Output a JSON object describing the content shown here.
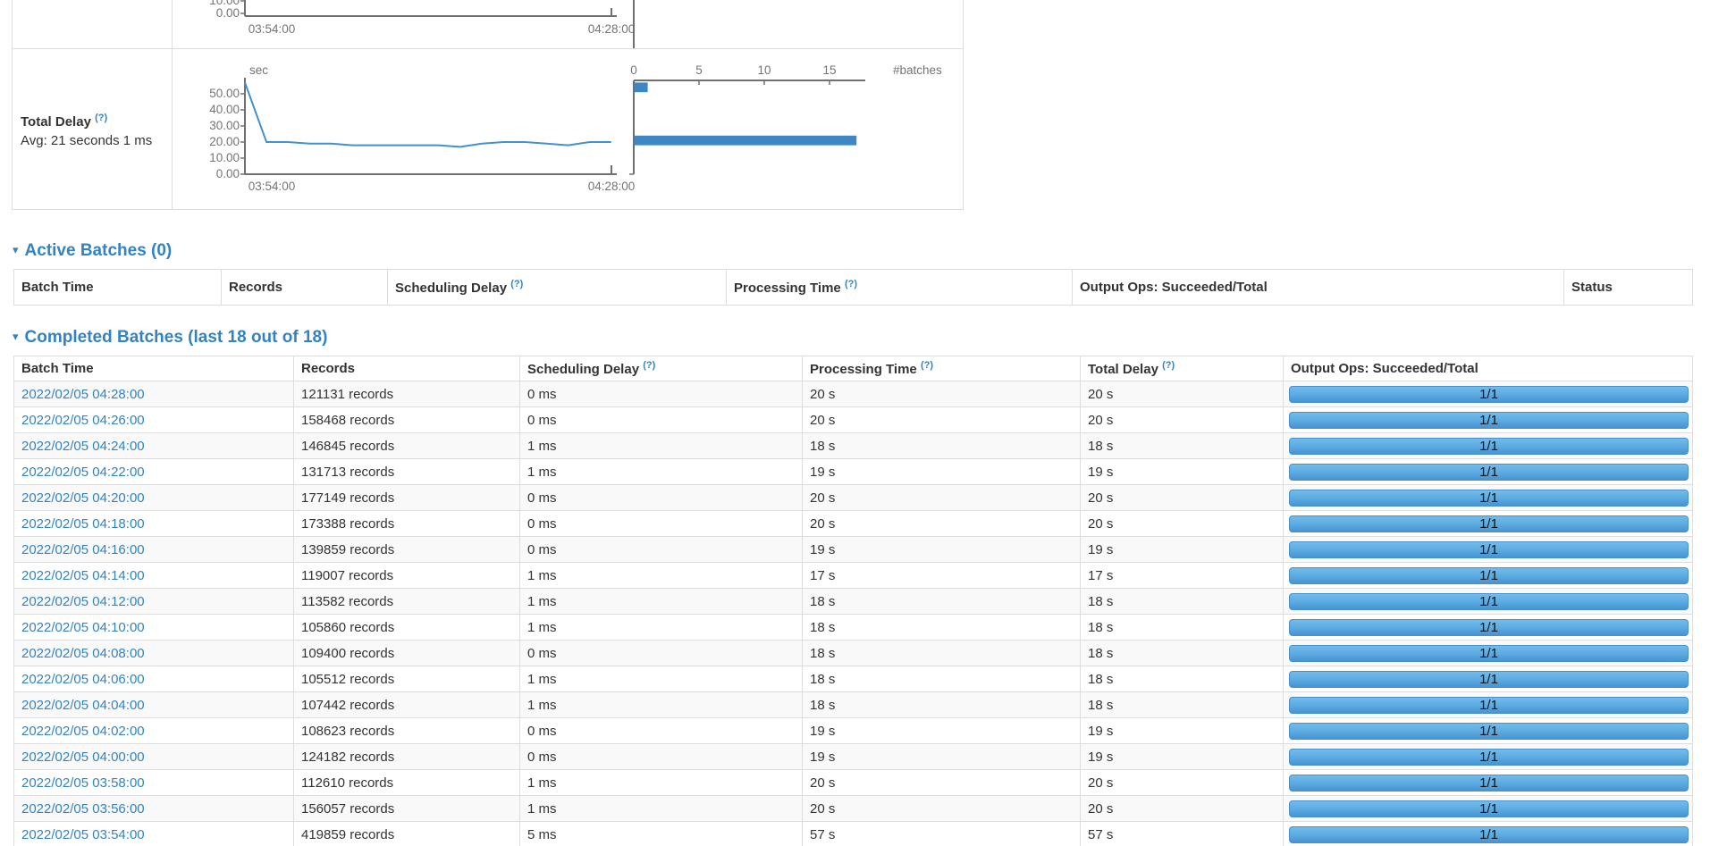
{
  "colors": {
    "accent_blue": "#3383c4",
    "chart_blue": "#3e86c4",
    "line_blue": "#4490d0",
    "axis_gray": "#707070",
    "label_gray": "#747474",
    "border_gray": "#dddddd",
    "stripe_gray": "#f9f9f9",
    "bar_gradient_top": "#72bcec",
    "bar_gradient_bottom": "#4892d3"
  },
  "stat_row": {
    "label": "Total Delay",
    "help_mark": "(?)",
    "avg": "Avg: 21 seconds 1 ms"
  },
  "chart_data": [
    {
      "name": "previous-metric-chart-cutoff",
      "type": "line",
      "note": "bottom edge of previous metric chart, cut off by viewport top",
      "visible_ytick_labels": [
        "10.00",
        "0.00"
      ],
      "x_labels": [
        "03:54:00",
        "04:28:00"
      ]
    },
    {
      "name": "total-delay-timeline",
      "type": "line",
      "unit_label": "sec",
      "x_labels": [
        "03:54:00",
        "04:28:00"
      ],
      "x_times": [
        "03:54",
        "03:56",
        "03:58",
        "04:00",
        "04:02",
        "04:04",
        "04:06",
        "04:08",
        "04:10",
        "04:12",
        "04:14",
        "04:16",
        "04:18",
        "04:20",
        "04:22",
        "04:24",
        "04:26",
        "04:28"
      ],
      "values_sec": [
        57,
        20,
        20,
        19,
        19,
        18,
        18,
        18,
        18,
        18,
        17,
        19,
        20,
        20,
        19,
        18,
        20,
        20
      ],
      "yticks": [
        0,
        10,
        20,
        30,
        40,
        50
      ],
      "ylim": [
        0,
        57
      ],
      "grid": false
    },
    {
      "name": "total-delay-histogram",
      "type": "bar",
      "orientation": "horizontal",
      "xlabel": "#batches",
      "xticks": [
        0,
        5,
        10,
        15
      ],
      "bins": [
        {
          "approx_sec_range": [
            51,
            57
          ],
          "count": 1
        },
        {
          "approx_sec_range": [
            18,
            24
          ],
          "count": 17
        }
      ]
    }
  ],
  "active_batches": {
    "arrow": "▾",
    "heading": "Active Batches (0)",
    "columns": [
      {
        "label": "Batch Time",
        "help": false
      },
      {
        "label": "Records",
        "help": false
      },
      {
        "label": "Scheduling Delay",
        "help": true
      },
      {
        "label": "Processing Time",
        "help": true
      },
      {
        "label": "Output Ops: Succeeded/Total",
        "help": false
      },
      {
        "label": "Status",
        "help": false
      }
    ],
    "rows": []
  },
  "completed_batches": {
    "arrow": "▾",
    "heading": "Completed Batches (last 18 out of 18)",
    "columns": [
      {
        "label": "Batch Time",
        "help": false
      },
      {
        "label": "Records",
        "help": false
      },
      {
        "label": "Scheduling Delay",
        "help": true
      },
      {
        "label": "Processing Time",
        "help": true
      },
      {
        "label": "Total Delay",
        "help": true
      },
      {
        "label": "Output Ops: Succeeded/Total",
        "help": false
      }
    ],
    "help_mark": "(?)",
    "rows": [
      {
        "batch_time": "2022/02/05 04:28:00",
        "records": "121131 records",
        "scheduling_delay": "0 ms",
        "processing_time": "20 s",
        "total_delay": "20 s",
        "output_ops": "1/1",
        "progress": 1
      },
      {
        "batch_time": "2022/02/05 04:26:00",
        "records": "158468 records",
        "scheduling_delay": "0 ms",
        "processing_time": "20 s",
        "total_delay": "20 s",
        "output_ops": "1/1",
        "progress": 1
      },
      {
        "batch_time": "2022/02/05 04:24:00",
        "records": "146845 records",
        "scheduling_delay": "1 ms",
        "processing_time": "18 s",
        "total_delay": "18 s",
        "output_ops": "1/1",
        "progress": 1
      },
      {
        "batch_time": "2022/02/05 04:22:00",
        "records": "131713 records",
        "scheduling_delay": "1 ms",
        "processing_time": "19 s",
        "total_delay": "19 s",
        "output_ops": "1/1",
        "progress": 1
      },
      {
        "batch_time": "2022/02/05 04:20:00",
        "records": "177149 records",
        "scheduling_delay": "0 ms",
        "processing_time": "20 s",
        "total_delay": "20 s",
        "output_ops": "1/1",
        "progress": 1
      },
      {
        "batch_time": "2022/02/05 04:18:00",
        "records": "173388 records",
        "scheduling_delay": "0 ms",
        "processing_time": "20 s",
        "total_delay": "20 s",
        "output_ops": "1/1",
        "progress": 1
      },
      {
        "batch_time": "2022/02/05 04:16:00",
        "records": "139859 records",
        "scheduling_delay": "0 ms",
        "processing_time": "19 s",
        "total_delay": "19 s",
        "output_ops": "1/1",
        "progress": 1
      },
      {
        "batch_time": "2022/02/05 04:14:00",
        "records": "119007 records",
        "scheduling_delay": "1 ms",
        "processing_time": "17 s",
        "total_delay": "17 s",
        "output_ops": "1/1",
        "progress": 1
      },
      {
        "batch_time": "2022/02/05 04:12:00",
        "records": "113582 records",
        "scheduling_delay": "1 ms",
        "processing_time": "18 s",
        "total_delay": "18 s",
        "output_ops": "1/1",
        "progress": 1
      },
      {
        "batch_time": "2022/02/05 04:10:00",
        "records": "105860 records",
        "scheduling_delay": "1 ms",
        "processing_time": "18 s",
        "total_delay": "18 s",
        "output_ops": "1/1",
        "progress": 1
      },
      {
        "batch_time": "2022/02/05 04:08:00",
        "records": "109400 records",
        "scheduling_delay": "0 ms",
        "processing_time": "18 s",
        "total_delay": "18 s",
        "output_ops": "1/1",
        "progress": 1
      },
      {
        "batch_time": "2022/02/05 04:06:00",
        "records": "105512 records",
        "scheduling_delay": "1 ms",
        "processing_time": "18 s",
        "total_delay": "18 s",
        "output_ops": "1/1",
        "progress": 1
      },
      {
        "batch_time": "2022/02/05 04:04:00",
        "records": "107442 records",
        "scheduling_delay": "1 ms",
        "processing_time": "18 s",
        "total_delay": "18 s",
        "output_ops": "1/1",
        "progress": 1
      },
      {
        "batch_time": "2022/02/05 04:02:00",
        "records": "108623 records",
        "scheduling_delay": "0 ms",
        "processing_time": "19 s",
        "total_delay": "19 s",
        "output_ops": "1/1",
        "progress": 1
      },
      {
        "batch_time": "2022/02/05 04:00:00",
        "records": "124182 records",
        "scheduling_delay": "0 ms",
        "processing_time": "19 s",
        "total_delay": "19 s",
        "output_ops": "1/1",
        "progress": 1
      },
      {
        "batch_time": "2022/02/05 03:58:00",
        "records": "112610 records",
        "scheduling_delay": "1 ms",
        "processing_time": "20 s",
        "total_delay": "20 s",
        "output_ops": "1/1",
        "progress": 1
      },
      {
        "batch_time": "2022/02/05 03:56:00",
        "records": "156057 records",
        "scheduling_delay": "1 ms",
        "processing_time": "20 s",
        "total_delay": "20 s",
        "output_ops": "1/1",
        "progress": 1
      },
      {
        "batch_time": "2022/02/05 03:54:00",
        "records": "419859 records",
        "scheduling_delay": "5 ms",
        "processing_time": "57 s",
        "total_delay": "57 s",
        "output_ops": "1/1",
        "progress": 1
      }
    ]
  }
}
